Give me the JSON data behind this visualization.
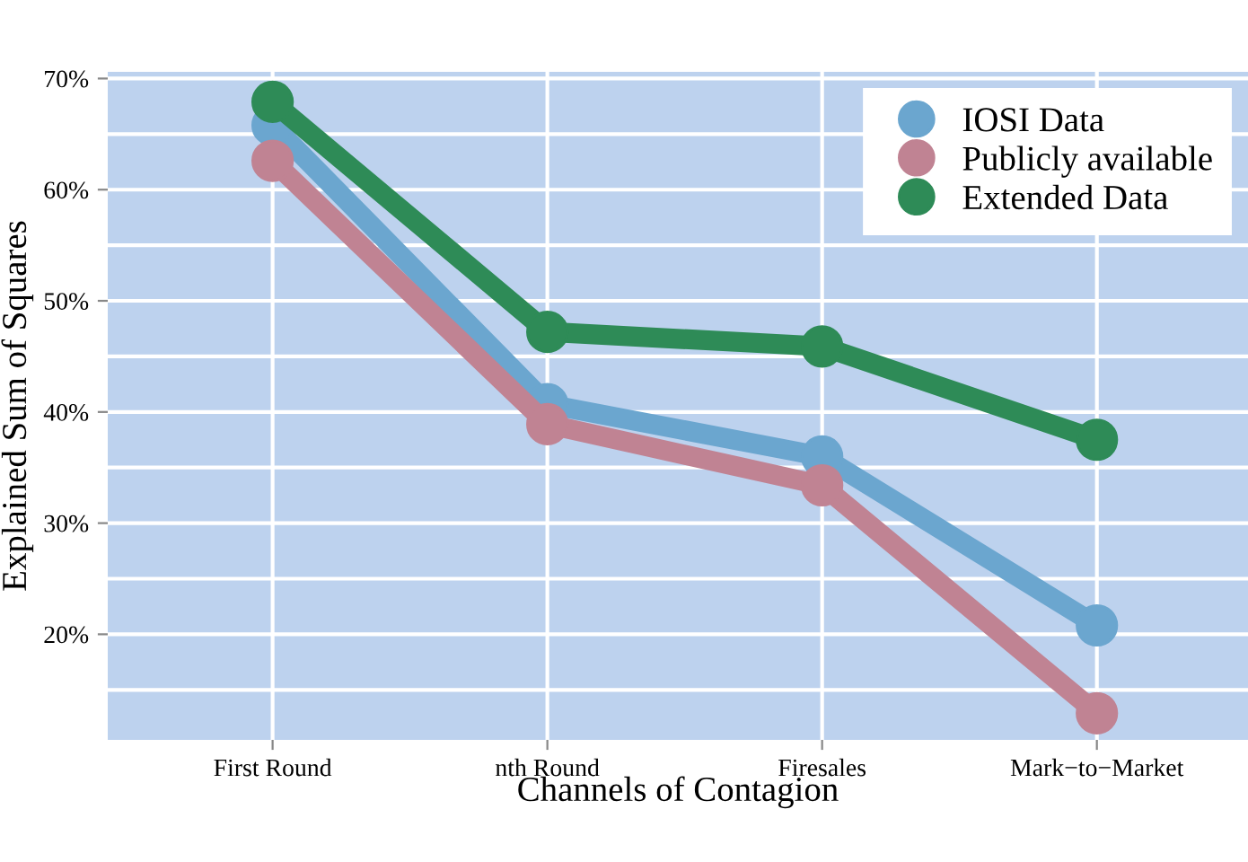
{
  "chart_data": {
    "type": "line",
    "xlabel": "Channels of Contagion",
    "ylabel": "Explained Sum of Squares",
    "categories": [
      "First Round",
      "nth Round",
      "Firesales",
      "Mark−to−Market"
    ],
    "series": [
      {
        "name": "IOSI Data",
        "color": "#6ba6cf",
        "values": [
          65.8,
          40.7,
          36.0,
          20.8
        ]
      },
      {
        "name": "Publicly available",
        "color": "#c08393",
        "values": [
          62.6,
          38.9,
          33.4,
          12.9
        ]
      },
      {
        "name": "Extended Data",
        "color": "#2e8b57",
        "values": [
          67.9,
          47.2,
          45.9,
          37.5
        ]
      }
    ],
    "ylim": [
      10.5,
      70.6
    ],
    "yticks": [
      {
        "value": 15,
        "label": null
      },
      {
        "value": 20,
        "label": "20%"
      },
      {
        "value": 25,
        "label": null
      },
      {
        "value": 30,
        "label": "30%"
      },
      {
        "value": 35,
        "label": null
      },
      {
        "value": 40,
        "label": "40%"
      },
      {
        "value": 45,
        "label": null
      },
      {
        "value": 50,
        "label": "50%"
      },
      {
        "value": 55,
        "label": null
      },
      {
        "value": 60,
        "label": "60%"
      },
      {
        "value": 65,
        "label": null
      },
      {
        "value": 70,
        "label": "70%"
      }
    ],
    "grid": true,
    "legend": "top right",
    "marker": "circle",
    "line_style": "solid"
  }
}
